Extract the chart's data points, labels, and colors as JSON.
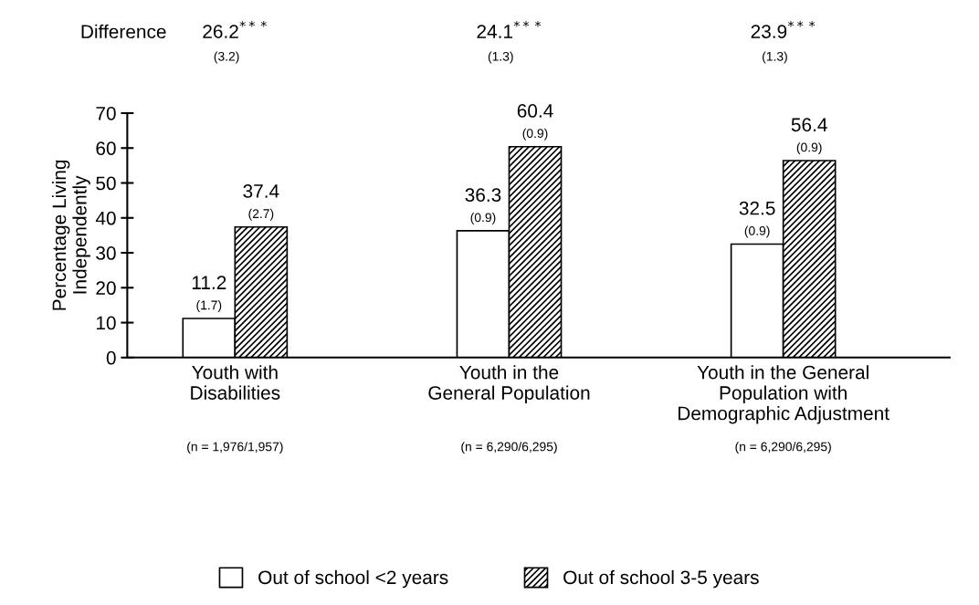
{
  "chart_data": {
    "type": "bar",
    "categories": [
      "Youth with\nDisabilities",
      "Youth in the\nGeneral Population",
      "Youth in the General\nPopulation with\nDemographic Adjustment"
    ],
    "series": [
      {
        "name": "Out of school <2 years",
        "color": "#ffffff",
        "values": [
          11.2,
          36.3,
          32.5
        ],
        "value_labels": [
          "11.2\n(1.7)",
          "36.3\n(0.9)",
          "32.5\n(0.9)"
        ]
      },
      {
        "name": "Out of school 3-5 years",
        "color": "#000000",
        "values": [
          37.4,
          60.4,
          56.4
        ],
        "value_labels": [
          "37.4\n(2.7)",
          "60.4\n(0.9)",
          "56.4\n(0.9)"
        ]
      }
    ],
    "ylabel": "Percentage Living\nIndependently",
    "ylim": [
      0,
      70
    ],
    "yticks": [
      0,
      10,
      20,
      30,
      40,
      50,
      60,
      70
    ],
    "grid": false,
    "legend": "bottom",
    "annotations": [
      "Difference",
      "26.2$^{***}$",
      "24.1$^{***}$",
      "23.9$^{***}$",
      "(3.2)",
      "(1.3)",
      "(1.3)",
      "(n = 1,976/1,957)",
      "(n = 6,290/6,295)",
      "(n = 6,290/6,295)"
    ]
  }
}
